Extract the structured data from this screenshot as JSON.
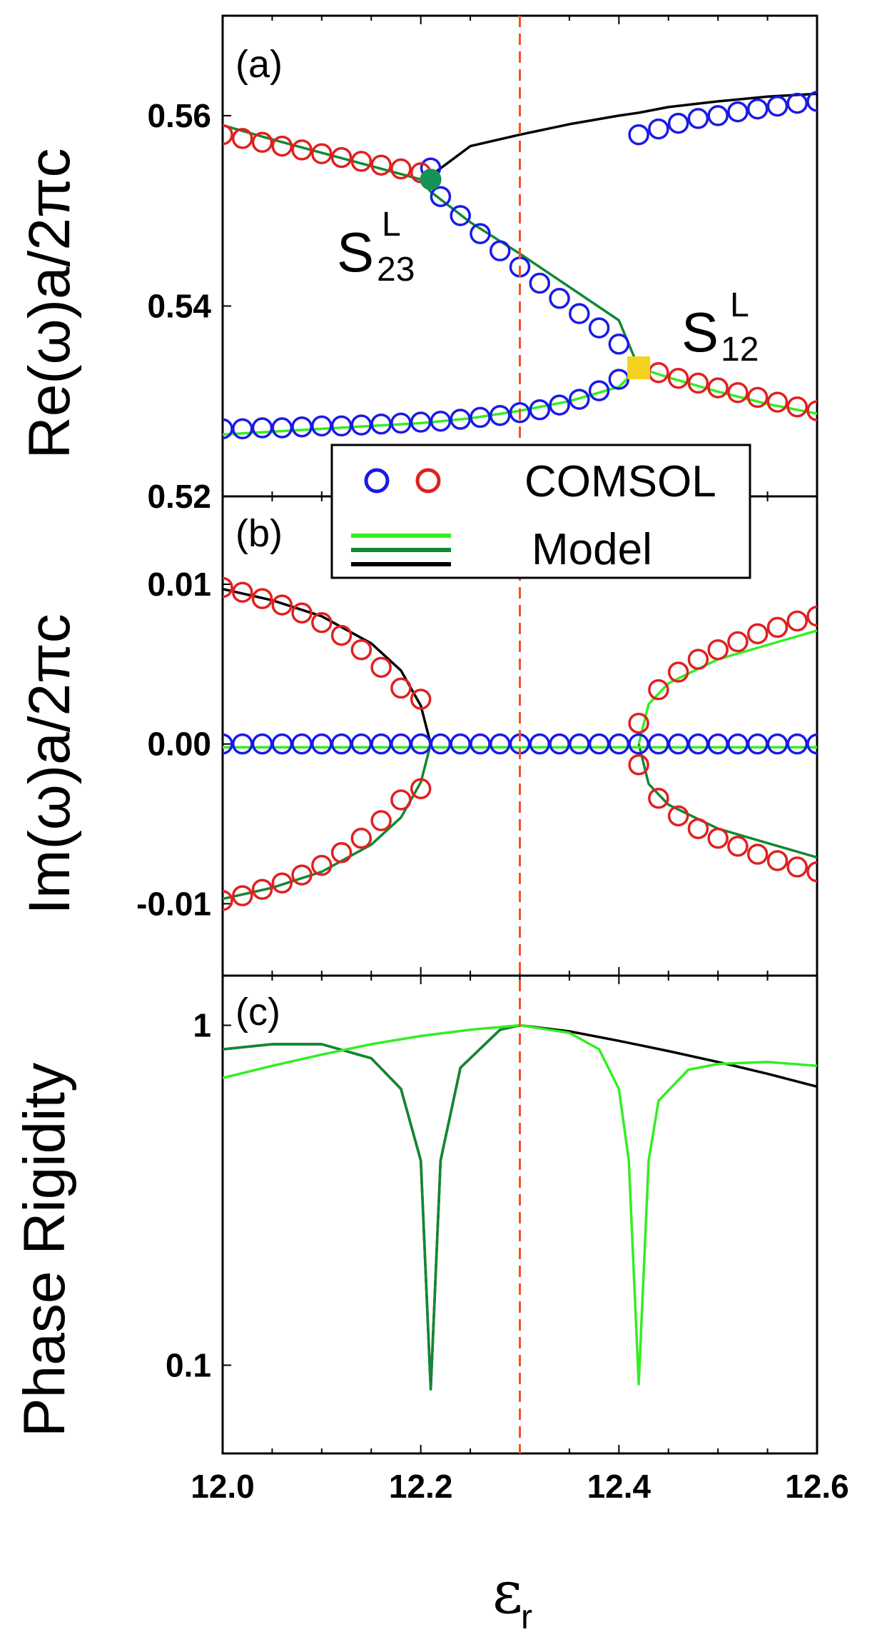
{
  "colors": {
    "blue": "#1a1ae6",
    "red": "#e02020",
    "lightGreen": "#33ee22",
    "darkGreen": "#118833",
    "black": "#000000",
    "dashed": "#ee5522",
    "eps23": "#179356",
    "eps12": "#f2d21c"
  },
  "chart_data": [
    {
      "type": "line",
      "panel": "a",
      "panel_label": "(a)",
      "ylabel": "Re(ω)a/2πc",
      "xlim": [
        12.0,
        12.6
      ],
      "ylim": [
        0.52,
        0.5705
      ],
      "yticks": [
        {
          "v": 0.52,
          "label": "0.52"
        },
        {
          "v": 0.54,
          "label": "0.54"
        },
        {
          "v": 0.56,
          "label": "0.56"
        }
      ],
      "x": [
        12.0,
        12.05,
        12.1,
        12.15,
        12.2,
        12.21,
        12.25,
        12.3,
        12.35,
        12.4,
        12.42,
        12.45,
        12.5,
        12.55,
        12.6
      ],
      "series": [
        {
          "name": "upper (black)",
          "color": "black",
          "values": [
            null,
            null,
            null,
            null,
            null,
            0.5537,
            0.5568,
            0.558,
            0.5591,
            0.56,
            0.5603,
            0.5609,
            0.5615,
            0.562,
            0.5623
          ]
        },
        {
          "name": "middle (dark green)",
          "color": "darkGreen",
          "values": [
            0.559,
            0.5575,
            0.5561,
            0.5547,
            0.5533,
            0.552,
            0.5488,
            0.5455,
            0.542,
            0.5385,
            0.5335,
            null,
            null,
            null,
            null
          ]
        },
        {
          "name": "lower (light green)",
          "color": "lightGreen",
          "values": [
            0.5265,
            0.5268,
            0.5271,
            0.5274,
            0.5277,
            0.5278,
            0.5282,
            0.529,
            0.53,
            0.5315,
            0.5335,
            0.5325,
            0.531,
            0.5297,
            0.5287
          ]
        },
        {
          "name": "COMSOL blue",
          "color": "blue",
          "markers": "circle",
          "x": [
            12.0,
            12.02,
            12.04,
            12.06,
            12.08,
            12.1,
            12.12,
            12.14,
            12.16,
            12.18,
            12.2,
            12.22,
            12.24,
            12.26,
            12.28,
            12.3,
            12.32,
            12.34,
            12.36,
            12.38,
            12.4,
            12.42,
            12.44,
            12.46,
            12.48,
            12.5,
            12.52,
            12.54,
            12.56,
            12.58,
            12.6
          ],
          "values": [
            0.5271,
            0.5271,
            0.5272,
            0.5272,
            0.5273,
            0.5274,
            0.5274,
            0.5275,
            0.5276,
            0.5277,
            0.5278,
            0.5279,
            0.5281,
            0.5283,
            0.5285,
            0.5288,
            0.5291,
            0.5296,
            0.5302,
            0.5311,
            0.5323,
            0.558,
            0.5586,
            0.5592,
            0.5597,
            0.56,
            0.5604,
            0.5607,
            0.561,
            0.5613,
            0.5615
          ]
        },
        {
          "name": "COMSOL blue (branch)",
          "color": "blue",
          "markers": "circle",
          "x": [
            12.21,
            12.22,
            12.24,
            12.26,
            12.28,
            12.3,
            12.32,
            12.34,
            12.36,
            12.38,
            12.4
          ],
          "values": [
            0.5545,
            0.5515,
            0.5495,
            0.5476,
            0.5458,
            0.5441,
            0.5424,
            0.5408,
            0.5392,
            0.5377,
            0.536
          ]
        },
        {
          "name": "COMSOL red",
          "color": "red",
          "markers": "circle",
          "x": [
            12.0,
            12.02,
            12.04,
            12.06,
            12.08,
            12.1,
            12.12,
            12.14,
            12.16,
            12.18,
            12.2,
            12.42,
            12.44,
            12.46,
            12.48,
            12.5,
            12.52,
            12.54,
            12.56,
            12.58,
            12.6
          ],
          "values": [
            0.558,
            0.5576,
            0.5572,
            0.5568,
            0.5564,
            0.556,
            0.5556,
            0.5552,
            0.5548,
            0.5544,
            0.554,
            0.5335,
            0.533,
            0.5324,
            0.5319,
            0.5314,
            0.5309,
            0.5304,
            0.5299,
            0.5294,
            0.529
          ]
        }
      ],
      "exceptional_points": [
        {
          "name": "S23",
          "label": "S",
          "sub": "23",
          "sup": "L",
          "x": 12.21,
          "y": 0.5533,
          "marker": "circle",
          "color": "eps23"
        },
        {
          "name": "S12",
          "label": "S",
          "sub": "12",
          "sup": "L",
          "x": 12.42,
          "y": 0.5335,
          "marker": "square",
          "color": "eps12"
        }
      ]
    },
    {
      "type": "line",
      "panel": "b",
      "panel_label": "(b)",
      "ylabel": "Im(ω)a/2πc",
      "xlim": [
        12.0,
        12.6
      ],
      "ylim": [
        -0.0145,
        0.0155
      ],
      "yticks": [
        {
          "v": -0.01,
          "label": "-0.01"
        },
        {
          "v": 0.0,
          "label": "0.00"
        },
        {
          "v": 0.01,
          "label": "0.01"
        }
      ],
      "legend": {
        "location": "top-center",
        "entries": [
          {
            "label": "COMSOL"
          },
          {
            "label": "Model"
          }
        ]
      },
      "series": [
        {
          "name": "Im upper-left (black)",
          "color": "black",
          "x": [
            12.0,
            12.05,
            12.1,
            12.15,
            12.18,
            12.2,
            12.21
          ],
          "values": [
            0.0097,
            0.009,
            0.008,
            0.0063,
            0.0046,
            0.0024,
            0.0
          ]
        },
        {
          "name": "Im lower-left (dark green)",
          "color": "darkGreen",
          "x": [
            12.0,
            12.05,
            12.1,
            12.15,
            12.18,
            12.2,
            12.21
          ],
          "values": [
            -0.0097,
            -0.009,
            -0.008,
            -0.0063,
            -0.0046,
            -0.0024,
            0.0
          ]
        },
        {
          "name": "Im upper-right (light green)",
          "color": "lightGreen",
          "x": [
            12.42,
            12.43,
            12.45,
            12.5,
            12.55,
            12.6
          ],
          "values": [
            0.0,
            0.0025,
            0.0038,
            0.0053,
            0.0062,
            0.0071
          ]
        },
        {
          "name": "Im lower-right (dark green)",
          "color": "darkGreen",
          "x": [
            12.42,
            12.43,
            12.45,
            12.5,
            12.55,
            12.6
          ],
          "values": [
            0.0,
            -0.0025,
            -0.0038,
            -0.0053,
            -0.0062,
            -0.0071
          ]
        },
        {
          "name": "Im zero (light green)",
          "color": "lightGreen",
          "x": [
            12.0,
            12.6
          ],
          "values": [
            -0.0002,
            -0.0002
          ]
        },
        {
          "name": "COMSOL blue zero",
          "color": "blue",
          "markers": "circle",
          "x": [
            12.0,
            12.02,
            12.04,
            12.06,
            12.08,
            12.1,
            12.12,
            12.14,
            12.16,
            12.18,
            12.2,
            12.22,
            12.24,
            12.26,
            12.28,
            12.3,
            12.32,
            12.34,
            12.36,
            12.38,
            12.4,
            12.42,
            12.44,
            12.46,
            12.48,
            12.5,
            12.52,
            12.54,
            12.56,
            12.58,
            12.6
          ],
          "values": [
            0.0,
            0.0,
            0.0,
            0.0,
            0.0,
            0.0,
            0.0,
            0.0,
            0.0,
            0.0,
            0.0,
            0.0,
            0.0,
            0.0,
            0.0,
            0.0,
            0.0,
            0.0,
            0.0,
            0.0,
            0.0,
            0.0,
            0.0,
            0.0,
            0.0,
            0.0,
            0.0,
            0.0,
            0.0,
            0.0,
            0.0
          ]
        },
        {
          "name": "COMSOL red",
          "color": "red",
          "markers": "circle",
          "x": [
            12.0,
            12.02,
            12.04,
            12.06,
            12.08,
            12.1,
            12.12,
            12.14,
            12.16,
            12.18,
            12.2,
            12.0,
            12.02,
            12.04,
            12.06,
            12.08,
            12.1,
            12.12,
            12.14,
            12.16,
            12.18,
            12.2,
            12.42,
            12.44,
            12.46,
            12.48,
            12.5,
            12.52,
            12.54,
            12.56,
            12.58,
            12.6,
            12.42,
            12.44,
            12.46,
            12.48,
            12.5,
            12.52,
            12.54,
            12.56,
            12.58,
            12.6
          ],
          "values": [
            0.0098,
            0.0095,
            0.0091,
            0.0087,
            0.0082,
            0.0076,
            0.0068,
            0.0059,
            0.0048,
            0.0035,
            0.0028,
            -0.0098,
            -0.0095,
            -0.0091,
            -0.0087,
            -0.0082,
            -0.0076,
            -0.0068,
            -0.0059,
            -0.0048,
            -0.0035,
            -0.0028,
            0.0013,
            0.0034,
            0.0045,
            0.0053,
            0.0059,
            0.0064,
            0.0069,
            0.0073,
            0.0077,
            0.008,
            -0.0013,
            -0.0034,
            -0.0045,
            -0.0053,
            -0.0059,
            -0.0064,
            -0.0069,
            -0.0073,
            -0.0077,
            -0.008
          ]
        }
      ]
    },
    {
      "type": "line",
      "panel": "c",
      "panel_label": "(c)",
      "ylabel": "Phase Rigidity",
      "xlabel": "ε",
      "xlabel_sub": "r",
      "xlim": [
        12.0,
        12.6
      ],
      "ylim": [
        0.055,
        1.4
      ],
      "yscale": "log",
      "yticks": [
        {
          "v": 0.1,
          "label": "0.1"
        },
        {
          "v": 1.0,
          "label": "1"
        }
      ],
      "xticks": [
        {
          "v": 12.0,
          "label": "12.0"
        },
        {
          "v": 12.2,
          "label": "12.2"
        },
        {
          "v": 12.4,
          "label": "12.4"
        },
        {
          "v": 12.6,
          "label": "12.6"
        }
      ],
      "series": [
        {
          "name": "r black",
          "color": "black",
          "x": [
            12.0,
            12.05,
            12.1,
            12.15,
            12.18,
            12.2,
            12.21,
            12.22,
            12.24,
            12.28,
            12.3,
            12.35,
            12.4,
            12.45,
            12.5,
            12.55,
            12.6
          ],
          "values": [
            0.85,
            0.88,
            0.88,
            0.8,
            0.65,
            0.4,
            0.085,
            0.4,
            0.75,
            0.97,
            1.0,
            0.96,
            0.9,
            0.84,
            0.78,
            0.72,
            0.66
          ]
        },
        {
          "name": "r dark green",
          "color": "darkGreen",
          "x": [
            12.0,
            12.05,
            12.1,
            12.15,
            12.18,
            12.2,
            12.21,
            12.22,
            12.24,
            12.28,
            12.3
          ],
          "values": [
            0.85,
            0.88,
            0.88,
            0.8,
            0.65,
            0.4,
            0.085,
            0.4,
            0.75,
            0.97,
            1.0
          ]
        },
        {
          "name": "r light green",
          "color": "lightGreen",
          "x": [
            12.0,
            12.05,
            12.1,
            12.15,
            12.2,
            12.25,
            12.3,
            12.35,
            12.38,
            12.4,
            12.41,
            12.42,
            12.43,
            12.44,
            12.47,
            12.5,
            12.55,
            12.6
          ],
          "values": [
            0.7,
            0.76,
            0.82,
            0.88,
            0.93,
            0.97,
            1.0,
            0.95,
            0.85,
            0.65,
            0.4,
            0.088,
            0.4,
            0.6,
            0.74,
            0.77,
            0.78,
            0.76
          ]
        }
      ],
      "reference_line": {
        "x": 12.3,
        "style": "dashed",
        "color": "dashed"
      }
    }
  ],
  "legend": {
    "comsol_label": "COMSOL",
    "model_label": "Model"
  }
}
